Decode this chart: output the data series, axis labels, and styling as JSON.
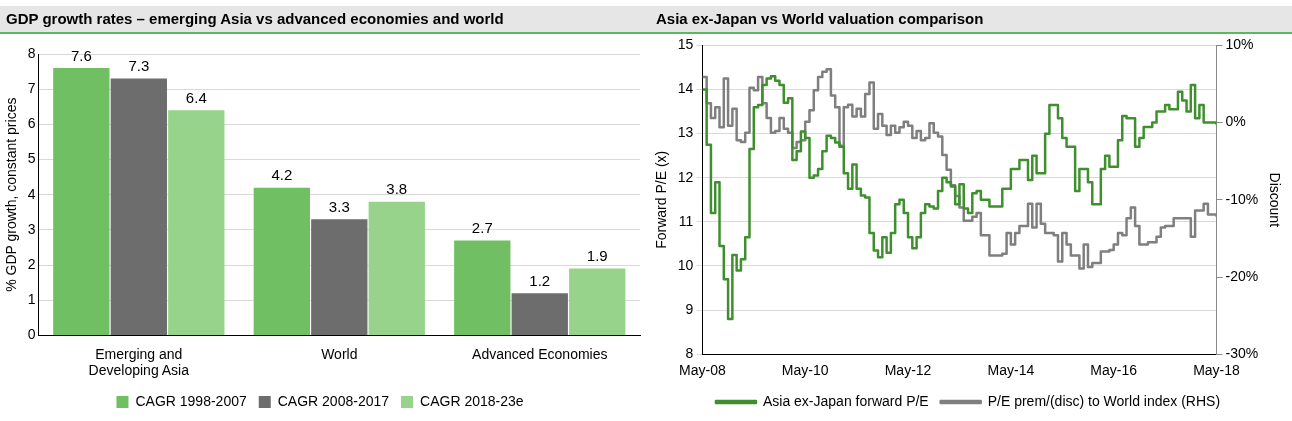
{
  "chart_data": [
    {
      "type": "bar",
      "title": "GDP growth rates – emerging Asia vs advanced economies and world",
      "ylabel": "% GDP growth, constant prices",
      "categories": [
        "Emerging and Developing Asia",
        "World",
        "Advanced Economies"
      ],
      "series": [
        {
          "name": "CAGR 1998-2007",
          "color": "#70bf63",
          "values": [
            7.6,
            4.2,
            2.7
          ]
        },
        {
          "name": "CAGR 2008-2017",
          "color": "#6d6d6d",
          "values": [
            7.3,
            3.3,
            1.2
          ]
        },
        {
          "name": "CAGR 2018-23e",
          "color": "#97d38a",
          "values": [
            6.4,
            3.8,
            1.9
          ]
        }
      ],
      "ylim": [
        0,
        8
      ],
      "yticks": [
        0,
        1,
        2,
        3,
        4,
        5,
        6,
        7,
        8
      ],
      "grid": "y",
      "legend": "bottom",
      "data_labels": true
    },
    {
      "type": "step",
      "title": "Asia ex-Japan vs World valuation comparison",
      "ylabel": "Forward P/E (x)",
      "y2label": "Discount",
      "xlim": [
        "2008-05",
        "2018-05"
      ],
      "xticks": [
        {
          "value": "2008-05",
          "label": "May-08"
        },
        {
          "value": "2010-05",
          "label": "May-10"
        },
        {
          "value": "2012-05",
          "label": "May-12"
        },
        {
          "value": "2014-05",
          "label": "May-14"
        },
        {
          "value": "2016-05",
          "label": "May-16"
        },
        {
          "value": "2018-05",
          "label": "May-18"
        }
      ],
      "ylim": [
        8,
        15
      ],
      "yticks": [
        8,
        9,
        10,
        11,
        12,
        13,
        14,
        15
      ],
      "y2lim": [
        -30,
        10
      ],
      "y2ticks": [
        {
          "value": -30,
          "label": "-30%"
        },
        {
          "value": -20,
          "label": "-20%"
        },
        {
          "value": -10,
          "label": "-10%"
        },
        {
          "value": 0,
          "label": "0%"
        },
        {
          "value": 10,
          "label": "10%"
        }
      ],
      "grid": "y",
      "legend": "bottom",
      "series": [
        {
          "name": "Asia ex-Japan forward P/E",
          "color": "#3f8f2f",
          "x": [
            "2008-05",
            "2008-06",
            "2008-07",
            "2008-08",
            "2008-09",
            "2008-10",
            "2008-11",
            "2008-12",
            "2009-01",
            "2009-02",
            "2009-03",
            "2009-04",
            "2009-05",
            "2009-06",
            "2009-07",
            "2009-08",
            "2009-09",
            "2009-10",
            "2009-11",
            "2009-12",
            "2010-01",
            "2010-02",
            "2010-03",
            "2010-04",
            "2010-05",
            "2010-06",
            "2010-07",
            "2010-08",
            "2010-09",
            "2010-10",
            "2010-11",
            "2010-12",
            "2011-01",
            "2011-02",
            "2011-03",
            "2011-04",
            "2011-05",
            "2011-06",
            "2011-07",
            "2011-08",
            "2011-09",
            "2011-10",
            "2011-11",
            "2011-12",
            "2012-01",
            "2012-02",
            "2012-03",
            "2012-04",
            "2012-05",
            "2012-06",
            "2012-07",
            "2012-08",
            "2012-09",
            "2012-10",
            "2012-11",
            "2012-12",
            "2013-01",
            "2013-02",
            "2013-03",
            "2013-04",
            "2013-05",
            "2013-06",
            "2013-07",
            "2013-08",
            "2013-09",
            "2013-10",
            "2013-12",
            "2014-03",
            "2014-05",
            "2014-07",
            "2014-09",
            "2014-10",
            "2014-11",
            "2015-01",
            "2015-02",
            "2015-04",
            "2015-05",
            "2015-06",
            "2015-08",
            "2015-09",
            "2015-11",
            "2015-12",
            "2016-02",
            "2016-03",
            "2016-04",
            "2016-06",
            "2016-07",
            "2016-08",
            "2016-10",
            "2016-11",
            "2016-12",
            "2017-02",
            "2017-03",
            "2017-05",
            "2017-06",
            "2017-08",
            "2017-09",
            "2017-10",
            "2017-11",
            "2017-12",
            "2018-01",
            "2018-02",
            "2018-05"
          ],
          "values": [
            14.0,
            12.75,
            11.2,
            11.9,
            10.45,
            9.7,
            8.8,
            10.25,
            9.9,
            10.15,
            10.65,
            12.65,
            13.6,
            13.65,
            14.1,
            14.25,
            14.3,
            14.2,
            14.1,
            13.7,
            13.8,
            12.4,
            12.6,
            13.05,
            12.9,
            12.0,
            12.05,
            12.2,
            12.6,
            12.95,
            12.9,
            12.8,
            12.7,
            12.1,
            11.75,
            12.3,
            11.75,
            11.6,
            11.55,
            10.75,
            10.35,
            10.2,
            10.65,
            10.3,
            10.75,
            11.4,
            11.5,
            11.2,
            10.65,
            10.4,
            10.65,
            11.2,
            11.4,
            11.35,
            11.3,
            11.7,
            12.0,
            11.9,
            11.8,
            11.4,
            11.85,
            11.3,
            11.2,
            11.65,
            11.7,
            11.5,
            11.35,
            11.75,
            12.2,
            12.4,
            11.95,
            12.5,
            12.1,
            13.0,
            13.65,
            13.35,
            12.9,
            12.7,
            11.7,
            12.2,
            11.9,
            11.4,
            12.2,
            12.5,
            12.25,
            12.85,
            13.4,
            13.35,
            12.7,
            12.9,
            13.15,
            13.25,
            13.5,
            13.65,
            13.55,
            13.95,
            13.75,
            13.5,
            14.1,
            13.35,
            13.65,
            13.25,
            13.2
          ]
        },
        {
          "name": "P/E prem/(disc) to World index (RHS)",
          "color": "#7f7f7f",
          "axis": "y2",
          "x": [
            "2008-05",
            "2008-06",
            "2008-07",
            "2008-08",
            "2008-09",
            "2008-10",
            "2008-11",
            "2008-12",
            "2009-01",
            "2009-02",
            "2009-03",
            "2009-04",
            "2009-05",
            "2009-06",
            "2009-07",
            "2009-08",
            "2009-09",
            "2009-10",
            "2009-11",
            "2009-12",
            "2010-01",
            "2010-02",
            "2010-03",
            "2010-04",
            "2010-05",
            "2010-06",
            "2010-07",
            "2010-08",
            "2010-09",
            "2010-10",
            "2010-11",
            "2010-12",
            "2011-01",
            "2011-02",
            "2011-03",
            "2011-04",
            "2011-05",
            "2011-06",
            "2011-07",
            "2011-08",
            "2011-09",
            "2011-10",
            "2011-11",
            "2011-12",
            "2012-01",
            "2012-02",
            "2012-03",
            "2012-04",
            "2012-05",
            "2012-06",
            "2012-07",
            "2012-08",
            "2012-09",
            "2012-10",
            "2012-11",
            "2012-12",
            "2013-01",
            "2013-02",
            "2013-03",
            "2013-04",
            "2013-05",
            "2013-06",
            "2013-08",
            "2013-09",
            "2013-10",
            "2013-12",
            "2014-03",
            "2014-04",
            "2014-05",
            "2014-06",
            "2014-07",
            "2014-09",
            "2014-10",
            "2014-11",
            "2014-12",
            "2015-01",
            "2015-03",
            "2015-04",
            "2015-05",
            "2015-06",
            "2015-07",
            "2015-09",
            "2015-10",
            "2015-11",
            "2015-12",
            "2016-02",
            "2016-04",
            "2016-05",
            "2016-06",
            "2016-07",
            "2016-08",
            "2016-09",
            "2016-10",
            "2016-11",
            "2017-01",
            "2017-03",
            "2017-04",
            "2017-05",
            "2017-07",
            "2017-10",
            "2017-11",
            "2017-12",
            "2018-02",
            "2018-03",
            "2018-05"
          ],
          "values": [
            5.9,
            2.5,
            0.6,
            2.0,
            -0.6,
            5.7,
            -0.4,
            1.8,
            -2.3,
            -2.5,
            -1.3,
            4.5,
            4.2,
            5.9,
            2.5,
            0.6,
            -1.3,
            -1.1,
            0.6,
            -0.8,
            -1.3,
            -3.3,
            -2.5,
            -2.3,
            0.1,
            1.6,
            4.2,
            5.9,
            6.6,
            6.9,
            3.5,
            2.0,
            -3.0,
            2.0,
            2.3,
            0.8,
            1.8,
            0.8,
            3.7,
            5.2,
            -0.8,
            1.1,
            -0.4,
            -1.6,
            -0.4,
            -1.3,
            -0.6,
            0.1,
            -0.4,
            -2.0,
            -1.1,
            -2.3,
            -2.0,
            -0.1,
            -1.3,
            -1.8,
            -4.2,
            -6.1,
            -8.1,
            -9.5,
            -11.0,
            -12.7,
            -12.2,
            -11.7,
            -14.6,
            -17.2,
            -17.0,
            -14.3,
            -15.8,
            -14.3,
            -13.4,
            -10.5,
            -13.6,
            -10.5,
            -13.1,
            -14.3,
            -14.6,
            -18.0,
            -14.3,
            -15.8,
            -17.2,
            -18.9,
            -15.8,
            -18.7,
            -18.2,
            -16.7,
            -16.5,
            -15.8,
            -14.3,
            -14.6,
            -12.4,
            -11.0,
            -13.4,
            -15.8,
            -15.5,
            -14.8,
            -13.6,
            -13.4,
            -12.4,
            -12.4,
            -14.8,
            -11.4,
            -10.5,
            -11.9,
            -12.2
          ]
        }
      ]
    }
  ]
}
